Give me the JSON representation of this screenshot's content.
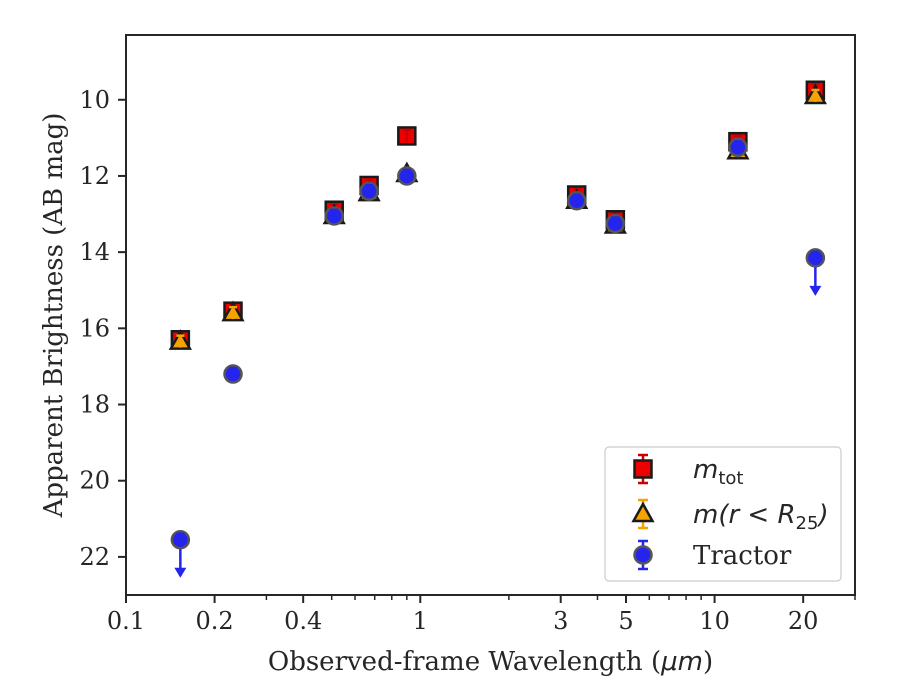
{
  "chart_data": {
    "type": "scatter",
    "xlabel_prefix": "Observed-frame Wavelength (",
    "xlabel_unit": "μm",
    "xlabel_suffix": ")",
    "ylabel": "Apparent Brightness (AB mag)",
    "xscale": "log",
    "xlim": [
      0.1,
      30
    ],
    "ylim": [
      23,
      8.3
    ],
    "y_inverted": true,
    "grid": false,
    "legend_position": "bottom-right",
    "x_ticks": [
      {
        "value": 0.1,
        "label": "0.1"
      },
      {
        "value": 0.2,
        "label": "0.2"
      },
      {
        "value": 0.4,
        "label": "0.4"
      },
      {
        "value": 1,
        "label": "1"
      },
      {
        "value": 3,
        "label": "3"
      },
      {
        "value": 5,
        "label": "5"
      },
      {
        "value": 10,
        "label": "10"
      },
      {
        "value": 20,
        "label": "20"
      }
    ],
    "y_ticks": [
      {
        "value": 10,
        "label": "10"
      },
      {
        "value": 12,
        "label": "12"
      },
      {
        "value": 14,
        "label": "14"
      },
      {
        "value": 16,
        "label": "16"
      },
      {
        "value": 18,
        "label": "18"
      },
      {
        "value": 20,
        "label": "20"
      },
      {
        "value": 22,
        "label": "22"
      }
    ],
    "series": [
      {
        "id": "mtot",
        "legend_label_main": "m",
        "legend_label_sub": "tot",
        "marker": "square",
        "color": "#ee0000",
        "errorbar_color": "#cc0000",
        "points": [
          {
            "x": 0.153,
            "y": 16.3
          },
          {
            "x": 0.231,
            "y": 15.55
          },
          {
            "x": 0.51,
            "y": 12.9
          },
          {
            "x": 0.67,
            "y": 12.25
          },
          {
            "x": 0.9,
            "y": 10.95
          },
          {
            "x": 3.4,
            "y": 12.5
          },
          {
            "x": 4.6,
            "y": 13.15
          },
          {
            "x": 12.0,
            "y": 11.1
          },
          {
            "x": 22.0,
            "y": 9.75
          }
        ]
      },
      {
        "id": "mr25",
        "legend_label_pre": "m(r < R",
        "legend_label_sub": "25",
        "legend_label_post": ")",
        "marker": "triangle",
        "color": "#f5a300",
        "errorbar_color": "#f5a300",
        "points": [
          {
            "x": 0.153,
            "y": 16.35
          },
          {
            "x": 0.231,
            "y": 15.6
          },
          {
            "x": 0.51,
            "y": 13.05
          },
          {
            "x": 0.67,
            "y": 12.45
          },
          {
            "x": 0.9,
            "y": 11.95
          },
          {
            "x": 3.4,
            "y": 12.65
          },
          {
            "x": 4.6,
            "y": 13.3
          },
          {
            "x": 12.0,
            "y": 11.35
          },
          {
            "x": 22.0,
            "y": 9.9
          }
        ]
      },
      {
        "id": "tractor",
        "legend_label": "Tractor",
        "marker": "circle",
        "color": "#2424ee",
        "errorbar_color": "#2424ee",
        "points": [
          {
            "x": 0.153,
            "y": 21.55,
            "upper_limit": true
          },
          {
            "x": 0.231,
            "y": 17.2
          },
          {
            "x": 0.51,
            "y": 13.05
          },
          {
            "x": 0.67,
            "y": 12.4
          },
          {
            "x": 0.9,
            "y": 12.0
          },
          {
            "x": 3.4,
            "y": 12.65
          },
          {
            "x": 4.6,
            "y": 13.25
          },
          {
            "x": 12.0,
            "y": 11.25
          },
          {
            "x": 22.0,
            "y": 14.15,
            "upper_limit": true
          }
        ]
      }
    ]
  }
}
